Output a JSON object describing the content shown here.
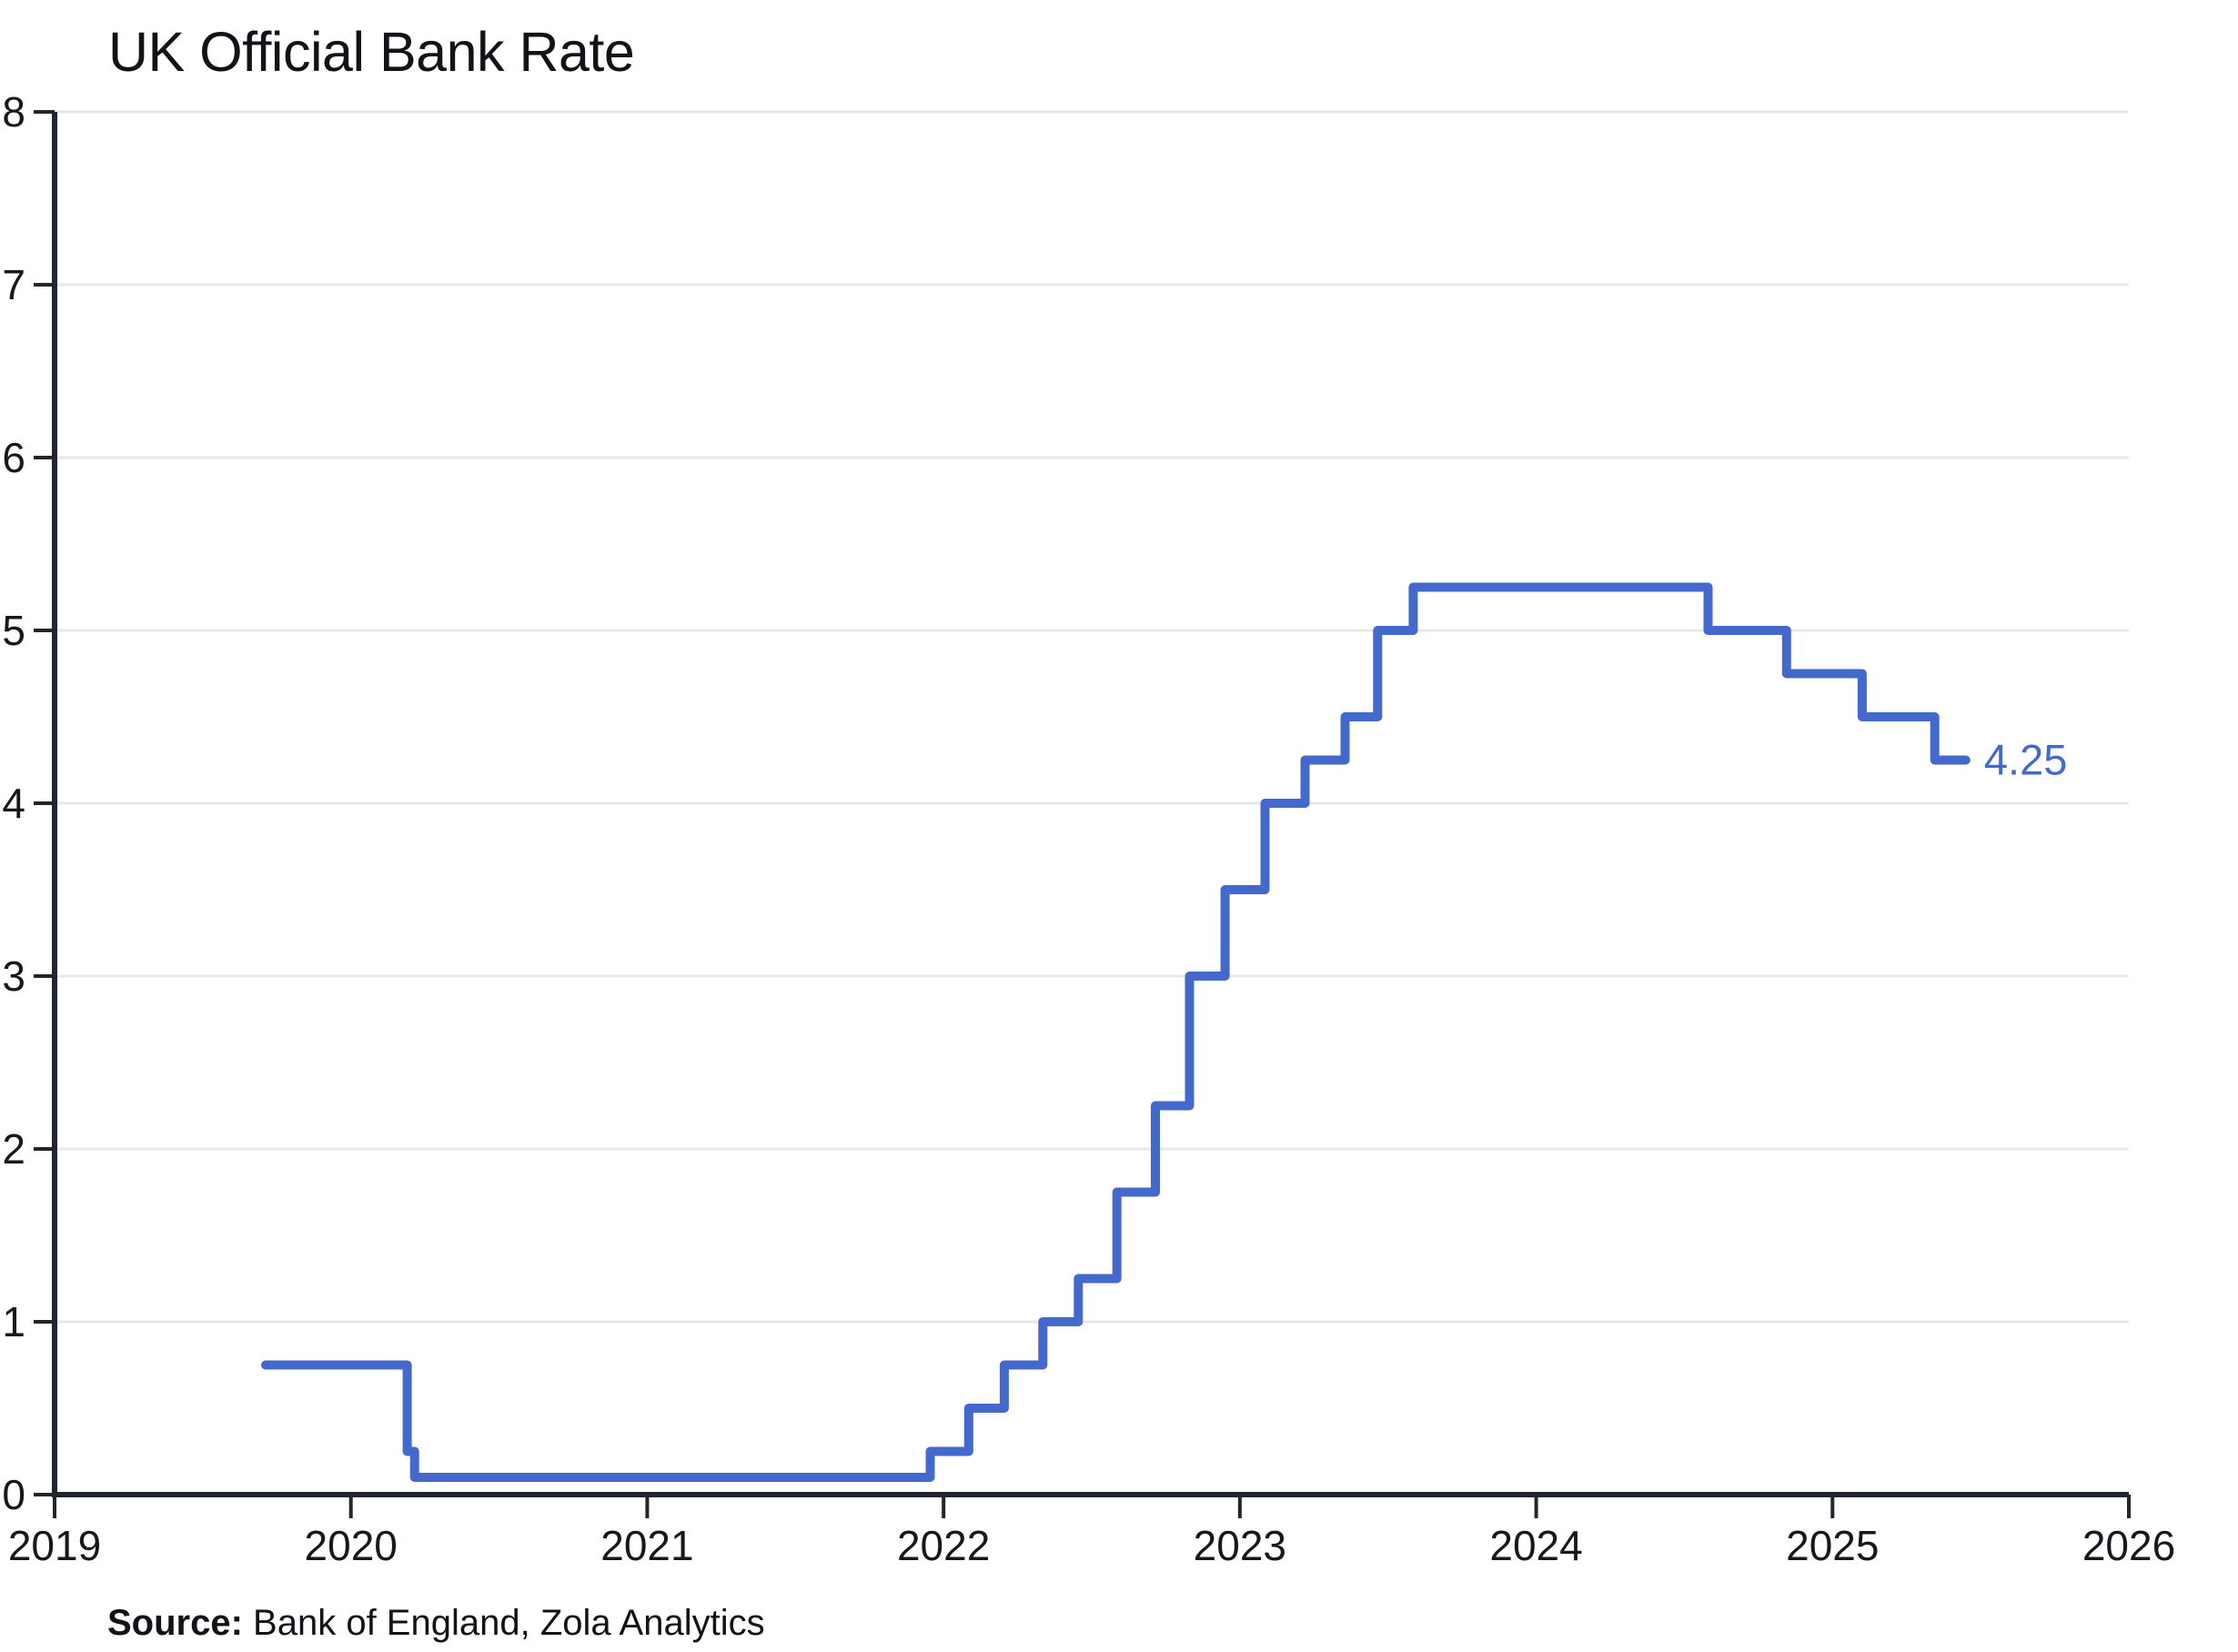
{
  "title": "UK Official Bank Rate",
  "source": {
    "label": "Source:",
    "text": " Bank of England, Zola Analytics"
  },
  "colors": {
    "line": "#4469cc",
    "grid": "#e8e8ea",
    "axis": "#21262e",
    "text": "#15181d"
  },
  "chart_data": {
    "type": "line",
    "step": true,
    "title": "UK Official Bank Rate",
    "xlabel": "",
    "ylabel": "",
    "xlim": [
      2019,
      2026
    ],
    "ylim": [
      0,
      8
    ],
    "grid": "horizontal",
    "x_tick_labels": [
      "2019",
      "2020",
      "2021",
      "2022",
      "2023",
      "2024",
      "2025",
      "2026"
    ],
    "x_ticks": [
      2019,
      2020,
      2021,
      2022,
      2023,
      2024,
      2025,
      2026
    ],
    "y_ticks": [
      0,
      1,
      2,
      3,
      4,
      5,
      6,
      7,
      8
    ],
    "series": [
      {
        "name": "UK Official Bank Rate",
        "points": [
          [
            2019.712,
            0.75
          ],
          [
            2020.19,
            0.25
          ],
          [
            2020.215,
            0.1
          ],
          [
            2021.955,
            0.25
          ],
          [
            2022.085,
            0.5
          ],
          [
            2022.205,
            0.75
          ],
          [
            2022.335,
            1.0
          ],
          [
            2022.455,
            1.25
          ],
          [
            2022.585,
            1.75
          ],
          [
            2022.715,
            2.25
          ],
          [
            2022.83,
            3.0
          ],
          [
            2022.95,
            3.5
          ],
          [
            2023.085,
            4.0
          ],
          [
            2023.22,
            4.25
          ],
          [
            2023.355,
            4.5
          ],
          [
            2023.465,
            5.0
          ],
          [
            2023.585,
            5.25
          ],
          [
            2024.58,
            5.0
          ],
          [
            2024.845,
            4.75
          ],
          [
            2025.1,
            4.5
          ],
          [
            2025.345,
            4.25
          ],
          [
            2025.45,
            4.25
          ]
        ]
      }
    ],
    "last_value_label": "4.25"
  }
}
